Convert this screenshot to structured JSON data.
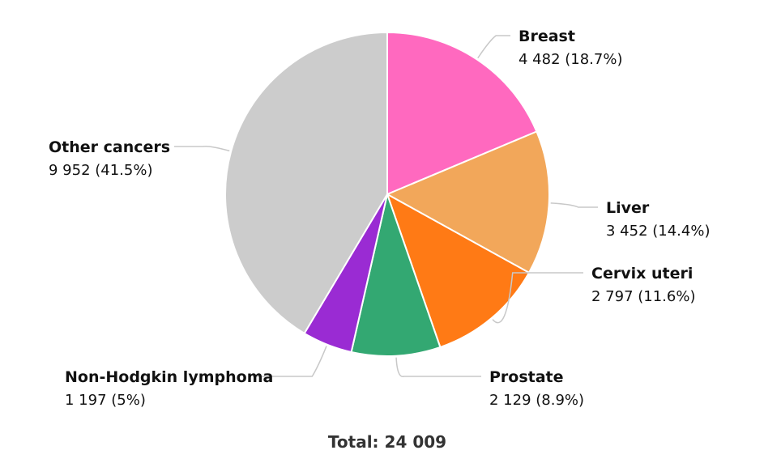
{
  "chart_data": {
    "type": "pie",
    "title": "",
    "slices": [
      {
        "key": "breast",
        "label": "Breast",
        "value": 4482,
        "value_text": "4 482 (18.7%)",
        "percent": 18.7,
        "color": "#ff69bf"
      },
      {
        "key": "liver",
        "label": "Liver",
        "value": 3452,
        "value_text": "3 452 (14.4%)",
        "percent": 14.4,
        "color": "#f2a75a"
      },
      {
        "key": "cervix",
        "label": "Cervix uteri",
        "value": 2797,
        "value_text": "2 797 (11.6%)",
        "percent": 11.6,
        "color": "#ff7a15"
      },
      {
        "key": "prostate",
        "label": "Prostate",
        "value": 2129,
        "value_text": "2 129 (8.9%)",
        "percent": 8.9,
        "color": "#33a872"
      },
      {
        "key": "nhl",
        "label": "Non-Hodgkin lymphoma",
        "value": 1197,
        "value_text": "1 197 (5%)",
        "percent": 5,
        "color": "#9a2bd3"
      },
      {
        "key": "other",
        "label": "Other cancers",
        "value": 9952,
        "value_text": "9 952 (41.5%)",
        "percent": 41.5,
        "color": "#cccccc"
      }
    ],
    "total": 24009,
    "total_text": "Total: 24 009",
    "start": "12 o'clock",
    "direction": "clockwise",
    "legend": "none (callout labels)"
  }
}
